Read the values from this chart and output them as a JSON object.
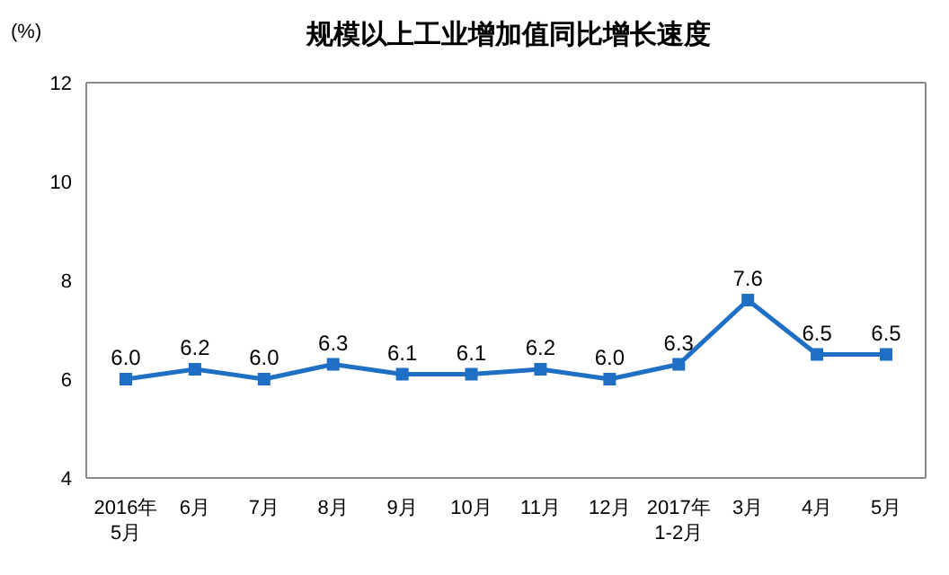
{
  "chart_data": {
    "type": "line",
    "title": "规模以上工业增加值同比增长速度",
    "ylabel": "(%)",
    "categories": [
      "2016年\n5月",
      "6月",
      "7月",
      "8月",
      "9月",
      "10月",
      "11月",
      "12月",
      "2017年\n1-2月",
      "3月",
      "4月",
      "5月"
    ],
    "series": [
      {
        "color": "#1f6fc5",
        "values": [
          6.0,
          6.2,
          6.0,
          6.3,
          6.1,
          6.1,
          6.2,
          6.0,
          6.3,
          7.6,
          6.5,
          6.5
        ],
        "value_labels": [
          "6.0",
          "6.2",
          "6.0",
          "6.3",
          "6.1",
          "6.1",
          "6.2",
          "6.0",
          "6.3",
          "7.6",
          "6.5",
          "6.5"
        ]
      }
    ],
    "ylim": [
      4,
      12
    ],
    "yticks": [
      4,
      6,
      8,
      10,
      12
    ],
    "grid": false,
    "marker": "square",
    "line_style": "solid"
  }
}
